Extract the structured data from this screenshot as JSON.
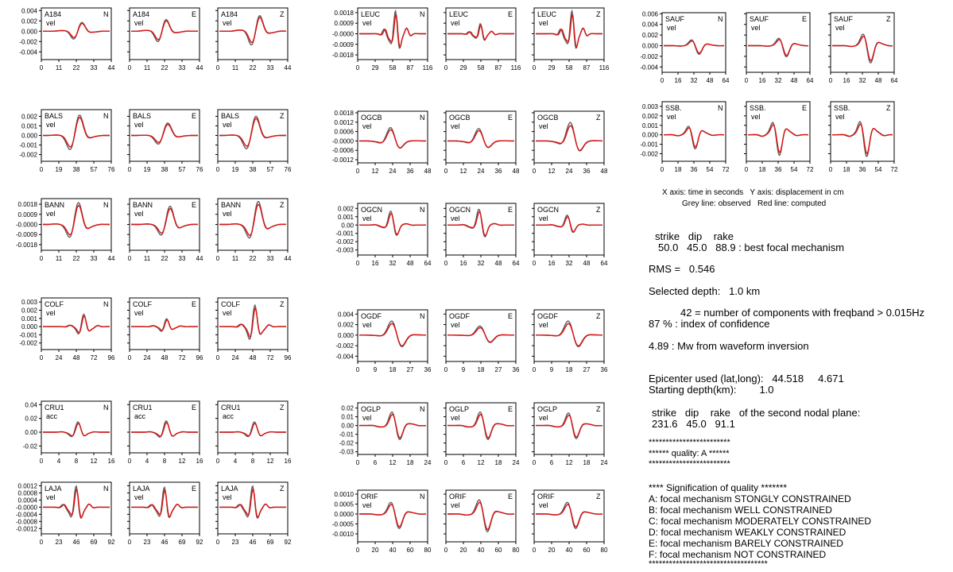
{
  "legend": {
    "axes_line": "X axis: time in seconds   Y axis: displacement in cm",
    "lines_line": "Grey line: observed   Red line: computed",
    "colors": {
      "observed": "#606060",
      "computed": "#dd1111"
    }
  },
  "results": {
    "mech_header": "strike   dip    rake",
    "mech_values": "50.0   45.0   88.9 : best focal mechanism",
    "rms": "RMS =   0.546",
    "depth": "Selected depth:   1.0 km",
    "ncomp": "42 = number of components with freqband > 0.015Hz",
    "confidence": "87 % : index of confidence",
    "mw": "4.89 : Mw from waveform inversion",
    "epicenter": "Epicenter used (lat,long):   44.518     4.671",
    "start_depth": "Starting depth(km):        1.0",
    "plane2_header": "strike   dip    rake   of the second nodal plane:",
    "plane2_values": "231.6   45.0   91.1",
    "stars1": "************************",
    "quality": "****** quality: A ******",
    "stars2": "************************",
    "sig_header": "**** Signification of quality *******",
    "q_a": "A: focal mechanism STONGLY CONSTRAINED",
    "q_b": "B: focal mechanism WELL CONSTRAINED",
    "q_c": "C: focal mechanism MODERATELY CONSTRAINED",
    "q_d": "D: focal mechanism WEAKLY CONSTRAINED",
    "q_e": "E: focal mechanism BARELY CONSTRAINED",
    "q_f": "F: focal mechanism NOT CONSTRAINED",
    "stars3": "***********************************"
  },
  "chart_data": [
    {
      "type": "line",
      "station": "A184",
      "unit": "vel",
      "comps": [
        "N",
        "E",
        "Z"
      ],
      "yticks": [
        "0.004",
        "0.002",
        "0.000",
        "-0.002",
        "-0.004"
      ],
      "ylim": [
        -0.0055,
        0.0045
      ],
      "xticks": [
        "0",
        "11",
        "22",
        "33",
        "44"
      ],
      "xmax": 44,
      "wave": {
        "c": [
          0.53,
          0.47,
          0.55
        ],
        "f": [
          1.2,
          1.2,
          1.2
        ],
        "a": [
          0.45,
          0.6,
          0.8
        ]
      }
    },
    {
      "type": "line",
      "station": "BALS",
      "unit": "vel",
      "comps": [
        "N",
        "E",
        "Z"
      ],
      "yticks": [
        "0.002",
        "0.001",
        "0.000",
        "-0.001",
        "-0.002"
      ],
      "ylim": [
        -0.0027,
        0.0027
      ],
      "xticks": [
        "0",
        "19",
        "38",
        "57",
        "76"
      ],
      "xmax": 76,
      "wave": {
        "c": [
          0.5,
          0.5,
          0.5
        ],
        "f": [
          1.0,
          1.0,
          1.0
        ],
        "a": [
          0.9,
          0.55,
          0.85
        ]
      }
    },
    {
      "type": "line",
      "station": "BANN",
      "unit": "vel",
      "comps": [
        "N",
        "E",
        "Z"
      ],
      "yticks": [
        "0.0018",
        "0.0009",
        "-0.0000",
        "-0.0009",
        "-0.0018"
      ],
      "ylim": [
        -0.0023,
        0.0023
      ],
      "xticks": [
        "0",
        "11",
        "22",
        "33",
        "44"
      ],
      "xmax": 44,
      "wave": {
        "c": [
          0.5,
          0.55,
          0.55
        ],
        "f": [
          1.1,
          1.1,
          1.1
        ],
        "a": [
          0.9,
          0.75,
          0.95
        ]
      }
    },
    {
      "type": "line",
      "station": "COLF",
      "unit": "vel",
      "comps": [
        "N",
        "E",
        "Z"
      ],
      "yticks": [
        "0.003",
        "0.002",
        "0.001",
        "0.000",
        "-0.001",
        "-0.002"
      ],
      "ylim": [
        -0.0028,
        0.0035
      ],
      "xticks": [
        "0",
        "24",
        "48",
        "72",
        "96"
      ],
      "xmax": 96,
      "wave": {
        "c": [
          0.6,
          0.52,
          0.52
        ],
        "f": [
          2.0,
          2.0,
          2.0
        ],
        "a": [
          0.55,
          0.35,
          0.95
        ]
      }
    },
    {
      "type": "line",
      "station": "CRU1",
      "unit": "acc",
      "comps": [
        "N",
        "E",
        "Z"
      ],
      "yticks": [
        "0.04",
        "0.02",
        "0.00",
        "-0.02"
      ],
      "ylim": [
        -0.03,
        0.045
      ],
      "xticks": [
        "0",
        "4",
        "8",
        "12",
        "16"
      ],
      "xmax": 16,
      "wave": {
        "c": [
          0.52,
          0.52,
          0.52
        ],
        "f": [
          1.6,
          1.6,
          1.6
        ],
        "a": [
          0.5,
          0.55,
          0.5
        ]
      }
    },
    {
      "type": "line",
      "station": "LAJA",
      "unit": "vel",
      "comps": [
        "N",
        "E",
        "Z"
      ],
      "yticks": [
        "0.0012",
        "0.0008",
        "0.0004",
        "-0.0000",
        "-0.0004",
        "-0.0008",
        "-0.0012"
      ],
      "ylim": [
        -0.0015,
        0.0014
      ],
      "xticks": [
        "0",
        "23",
        "46",
        "69",
        "92"
      ],
      "xmax": 92,
      "wave": {
        "c": [
          0.5,
          0.5,
          0.5
        ],
        "f": [
          2.2,
          2.2,
          2.2
        ],
        "a": [
          0.85,
          0.8,
          0.85
        ]
      }
    },
    {
      "type": "line",
      "station": "LEUC",
      "unit": "vel",
      "comps": [
        "N",
        "E",
        "Z"
      ],
      "yticks": [
        "0.0018",
        "0.0009",
        "-0.0000",
        "-0.0009",
        "-0.0018"
      ],
      "ylim": [
        -0.0022,
        0.0022
      ],
      "xticks": [
        "0",
        "29",
        "58",
        "87",
        "116"
      ],
      "xmax": 116,
      "wave": {
        "c": [
          0.55,
          0.5,
          0.55
        ],
        "f": [
          2.6,
          2.6,
          2.6
        ],
        "a": [
          0.9,
          0.4,
          0.9
        ]
      }
    },
    {
      "type": "line",
      "station": "OGCB",
      "unit": "vel",
      "comps": [
        "N",
        "E",
        "Z"
      ],
      "yticks": [
        "0.0018",
        "0.0012",
        "0.0006",
        "-0.0000",
        "-0.0006",
        "-0.0012"
      ],
      "ylim": [
        -0.0014,
        0.0019
      ],
      "xticks": [
        "0",
        "12",
        "24",
        "36",
        "48"
      ],
      "xmax": 48,
      "wave": {
        "c": [
          0.5,
          0.5,
          0.55
        ],
        "f": [
          1.0,
          1.0,
          1.0
        ],
        "a": [
          0.65,
          0.6,
          0.9
        ]
      }
    },
    {
      "type": "line",
      "station": "OGCN",
      "unit": "vel",
      "comps": [
        "N",
        "E",
        "Z"
      ],
      "yticks": [
        "0.002",
        "0.001",
        "0.00",
        "-0.001",
        "-0.002",
        "-0.003"
      ],
      "ylim": [
        -0.0036,
        0.0026
      ],
      "xticks": [
        "0",
        "16",
        "32",
        "48",
        "64"
      ],
      "xmax": 64,
      "wave": {
        "c": [
          0.5,
          0.5,
          0.5
        ],
        "f": [
          1.7,
          1.7,
          1.7
        ],
        "a": [
          0.7,
          0.8,
          0.5
        ]
      }
    },
    {
      "type": "line",
      "station": "OGDF",
      "unit": "vel",
      "comps": [
        "N",
        "E",
        "Z"
      ],
      "yticks": [
        "0.004",
        "0.002",
        "0.000",
        "-0.002",
        "-0.004"
      ],
      "ylim": [
        -0.005,
        0.0048
      ],
      "xticks": [
        "0",
        "9",
        "18",
        "27",
        "36"
      ],
      "xmax": 36,
      "wave": {
        "c": [
          0.55,
          0.55,
          0.55
        ],
        "f": [
          0.9,
          0.9,
          0.9
        ],
        "a": [
          0.7,
          0.45,
          0.7
        ]
      }
    },
    {
      "type": "line",
      "station": "OGLP",
      "unit": "vel",
      "comps": [
        "N",
        "E",
        "Z"
      ],
      "yticks": [
        "0.02",
        "0.01",
        "0.00",
        "-0.01",
        "-0.02",
        "-0.03"
      ],
      "ylim": [
        -0.033,
        0.026
      ],
      "xticks": [
        "0",
        "6",
        "12",
        "18",
        "24"
      ],
      "xmax": 24,
      "wave": {
        "c": [
          0.55,
          0.55,
          0.55
        ],
        "f": [
          1.3,
          1.3,
          1.3
        ],
        "a": [
          0.75,
          0.75,
          0.7
        ]
      }
    },
    {
      "type": "line",
      "station": "ORIF",
      "unit": "vel",
      "comps": [
        "N",
        "E",
        "Z"
      ],
      "yticks": [
        "0.0010",
        "0.0005",
        "0.0000",
        "-0.0005",
        "-0.0010"
      ],
      "ylim": [
        -0.0014,
        0.0012
      ],
      "xticks": [
        "0",
        "20",
        "40",
        "60",
        "80"
      ],
      "xmax": 80,
      "wave": {
        "c": [
          0.55,
          0.55,
          0.55
        ],
        "f": [
          1.2,
          1.2,
          1.2
        ],
        "a": [
          0.7,
          0.85,
          0.7
        ]
      }
    },
    {
      "type": "line",
      "station": "SAUF",
      "unit": "vel",
      "comps": [
        "N",
        "E",
        "Z"
      ],
      "yticks": [
        "0.006",
        "0.004",
        "0.002",
        "0.000",
        "-0.002",
        "-0.004"
      ],
      "ylim": [
        -0.005,
        0.0062
      ],
      "xticks": [
        "0",
        "16",
        "32",
        "48",
        "64"
      ],
      "xmax": 64,
      "wave": {
        "c": [
          0.55,
          0.6,
          0.6
        ],
        "f": [
          1.2,
          1.2,
          1.2
        ],
        "a": [
          0.35,
          0.45,
          0.7
        ]
      }
    },
    {
      "type": "line",
      "station": "SSB.",
      "unit": "vel",
      "comps": [
        "N",
        "E",
        "Z"
      ],
      "yticks": [
        "0.003",
        "0.002",
        "0.001",
        "0.000",
        "-0.001",
        "-0.002"
      ],
      "ylim": [
        -0.0028,
        0.0035
      ],
      "xticks": [
        "0",
        "18",
        "36",
        "54",
        "72"
      ],
      "xmax": 72,
      "wave": {
        "c": [
          0.5,
          0.5,
          0.55
        ],
        "f": [
          1.4,
          1.4,
          1.4
        ],
        "a": [
          0.55,
          0.8,
          0.85
        ]
      }
    }
  ]
}
